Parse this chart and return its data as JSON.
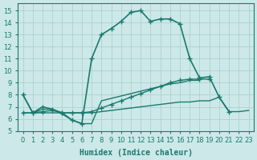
{
  "xlabel": "Humidex (Indice chaleur)",
  "bg_color": "#cce8e8",
  "grid_color": "#aacccc",
  "line_color": "#1a7a6e",
  "xlim": [
    -0.5,
    23.5
  ],
  "ylim": [
    5,
    15.6
  ],
  "yticks": [
    5,
    6,
    7,
    8,
    9,
    10,
    11,
    12,
    13,
    14,
    15
  ],
  "series": [
    {
      "x": [
        0,
        1,
        2,
        3,
        4,
        5,
        6,
        7,
        8,
        9,
        10,
        11,
        12,
        13,
        14,
        15,
        16,
        17,
        18,
        19,
        20,
        21
      ],
      "y": [
        8.0,
        6.5,
        7.0,
        6.8,
        6.5,
        5.9,
        5.6,
        11.0,
        13.0,
        13.5,
        14.1,
        14.85,
        15.0,
        14.1,
        14.3,
        14.3,
        13.9,
        11.0,
        9.4,
        9.5,
        7.8,
        6.6
      ],
      "marker": "+",
      "ms": 5,
      "lw": 1.2
    },
    {
      "x": [
        0,
        1,
        2,
        3,
        4,
        5,
        6,
        7,
        8,
        9,
        10,
        11,
        12,
        13,
        14,
        15,
        16,
        17,
        18,
        19
      ],
      "y": [
        6.5,
        6.5,
        6.6,
        6.7,
        6.5,
        6.5,
        6.5,
        6.6,
        6.9,
        7.2,
        7.5,
        7.8,
        8.1,
        8.4,
        8.7,
        9.0,
        9.2,
        9.3,
        9.3,
        9.3
      ],
      "marker": "+",
      "ms": 4,
      "lw": 1.0
    },
    {
      "x": [
        0,
        1,
        2,
        3,
        4,
        5,
        6,
        7,
        8,
        9,
        10,
        11,
        12,
        13,
        14,
        15,
        16,
        17,
        18,
        19,
        20,
        21,
        22,
        23
      ],
      "y": [
        6.5,
        6.5,
        6.5,
        6.5,
        6.5,
        6.5,
        6.5,
        6.5,
        6.6,
        6.7,
        6.8,
        6.9,
        7.0,
        7.1,
        7.2,
        7.3,
        7.4,
        7.4,
        7.5,
        7.5,
        7.8,
        6.6,
        6.6,
        6.7
      ],
      "marker": null,
      "ms": 0,
      "lw": 1.0
    },
    {
      "x": [
        0,
        1,
        2,
        3,
        4,
        5,
        6,
        7,
        8,
        9,
        10,
        11,
        12,
        13,
        14,
        15,
        16,
        17,
        18
      ],
      "y": [
        8.0,
        6.5,
        6.8,
        6.8,
        6.4,
        5.9,
        5.6,
        5.6,
        7.5,
        7.7,
        7.9,
        8.1,
        8.3,
        8.5,
        8.7,
        8.9,
        9.0,
        9.2,
        9.2
      ],
      "marker": null,
      "ms": 0,
      "lw": 1.0
    }
  ]
}
